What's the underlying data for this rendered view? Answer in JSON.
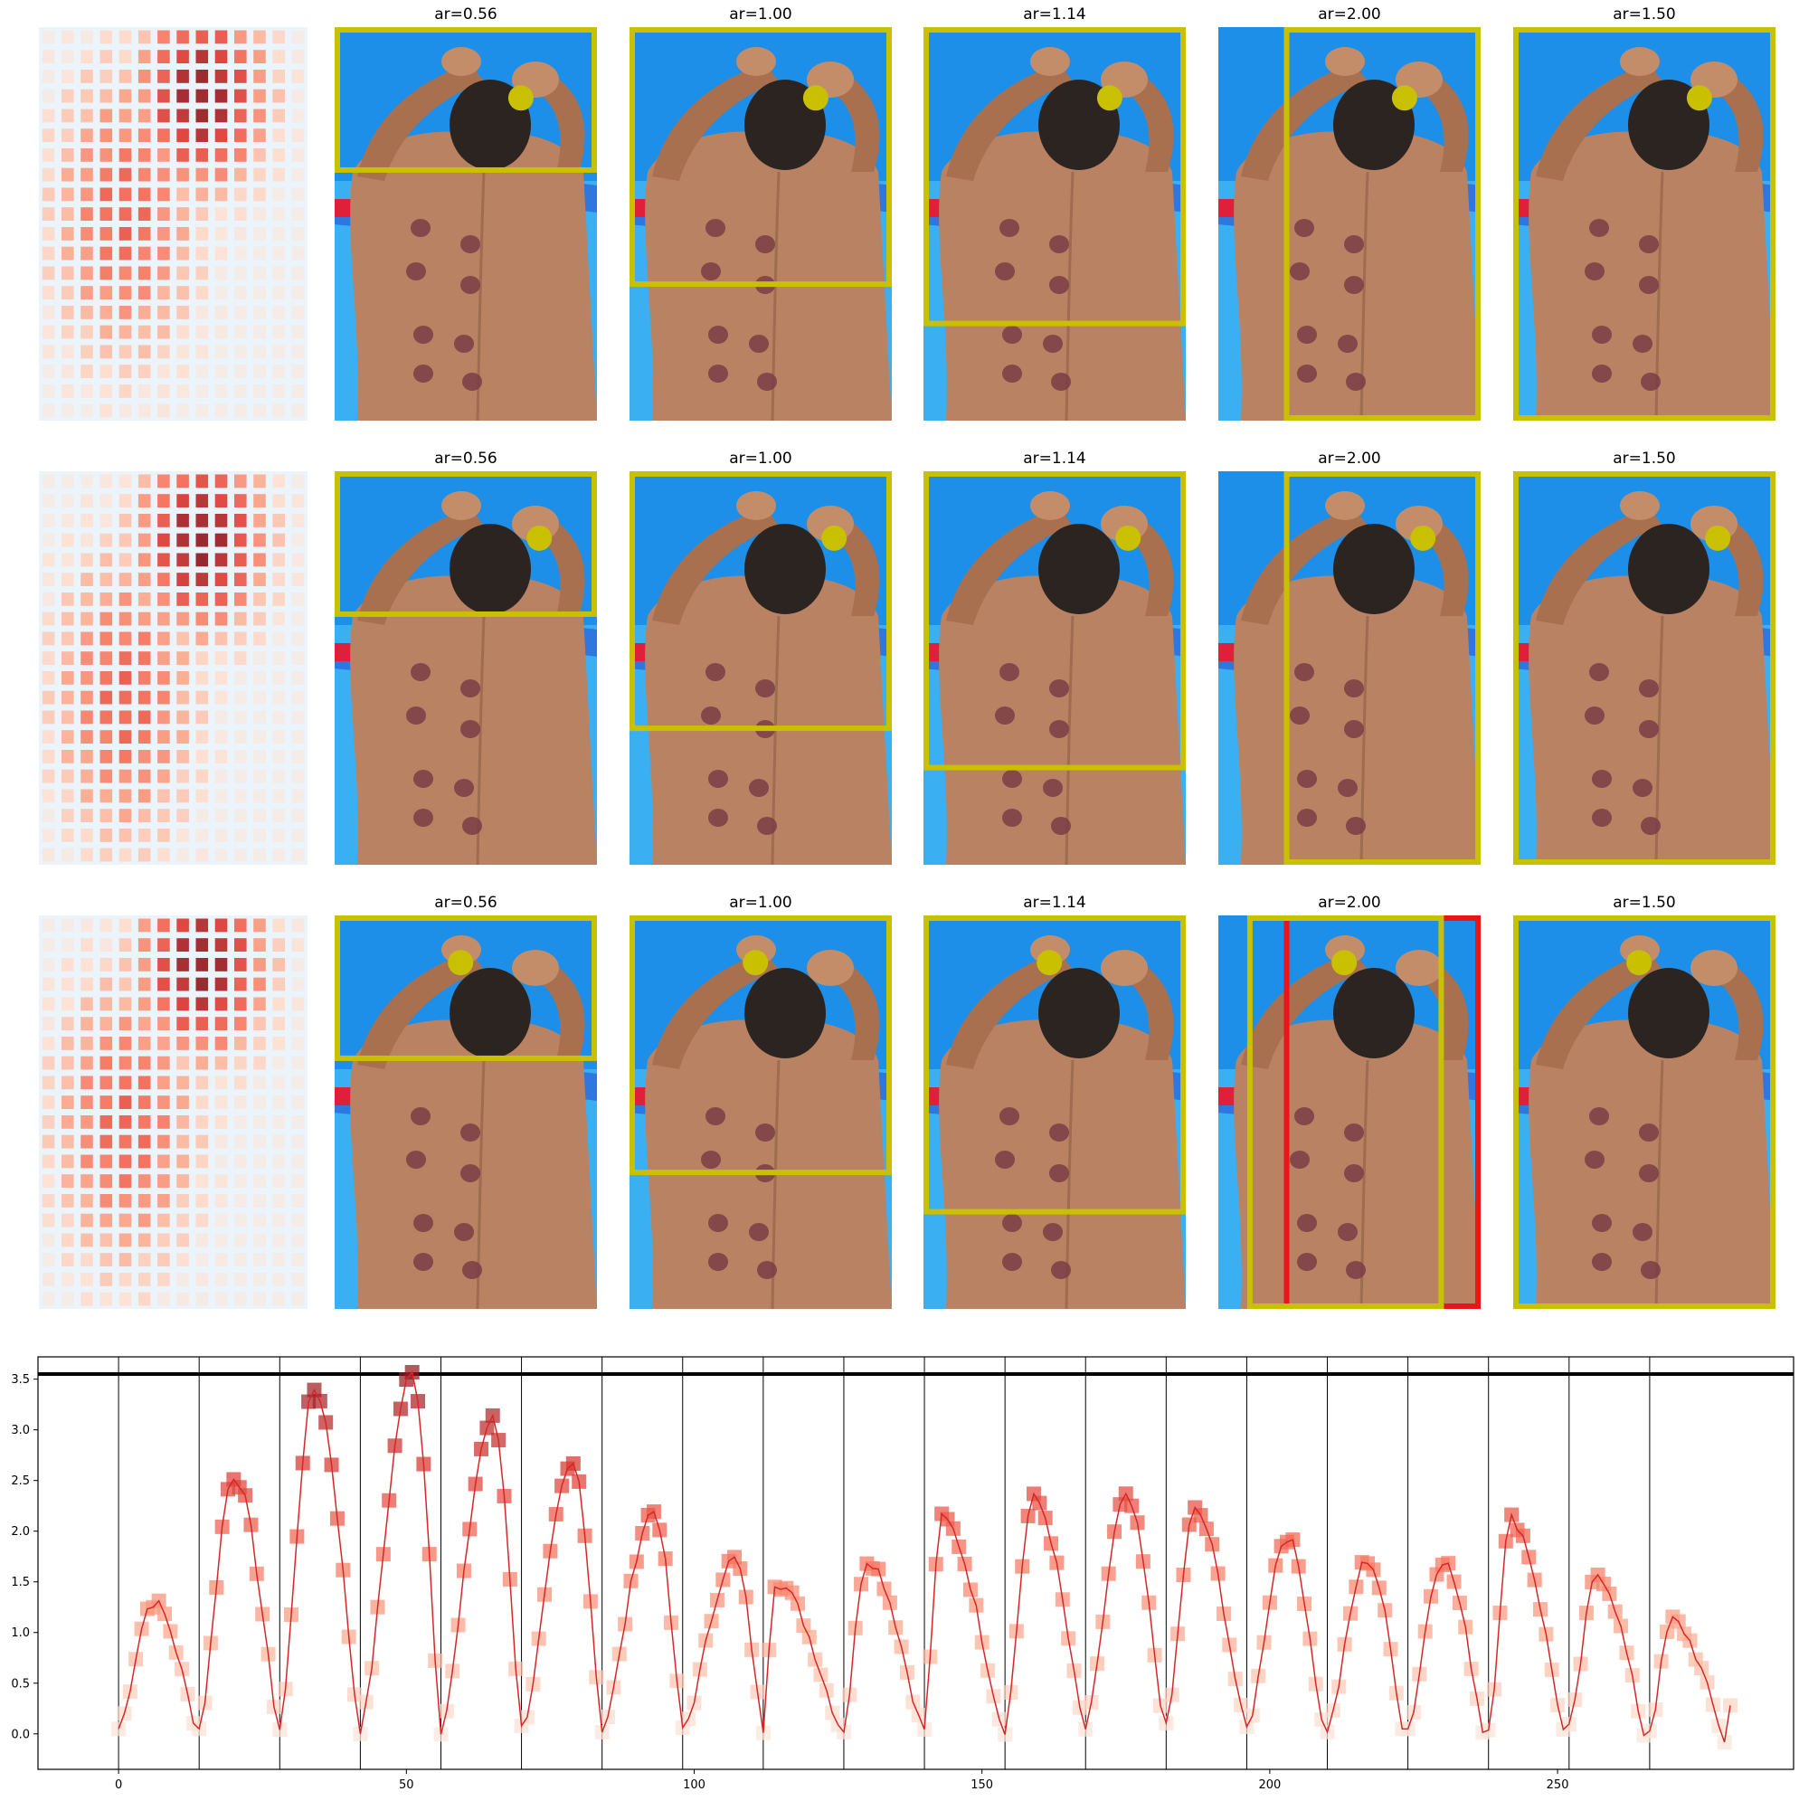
{
  "panel_titles": [
    "ar=0.56",
    "ar=1.00",
    "ar=1.14",
    "ar=2.00",
    "ar=1.50"
  ],
  "colors": {
    "box": "#c8c000",
    "box_alt": "#e8151b",
    "dot": "#c8c000",
    "line": "#d62728",
    "threshold": "#000000",
    "sky": "#1fa3ef",
    "skin": "#b98262"
  },
  "image_rows": [
    {
      "panels": [
        {
          "ar": 0.56,
          "box": {
            "x0": 0.0,
            "y0": 0.0,
            "x1": 1.0,
            "y1": 0.37
          },
          "dot": [
            0.71,
            0.18
          ]
        },
        {
          "ar": 1.0,
          "box": {
            "x0": 0.0,
            "y0": 0.0,
            "x1": 1.0,
            "y1": 0.66
          },
          "dot": [
            0.71,
            0.18
          ]
        },
        {
          "ar": 1.14,
          "box": {
            "x0": 0.0,
            "y0": 0.0,
            "x1": 1.0,
            "y1": 0.76
          },
          "dot": [
            0.71,
            0.18
          ]
        },
        {
          "ar": 2.0,
          "box": {
            "x0": 0.25,
            "y0": 0.0,
            "x1": 1.0,
            "y1": 1.0
          },
          "dot": [
            0.71,
            0.18
          ]
        },
        {
          "ar": 1.5,
          "box": {
            "x0": 0.0,
            "y0": 0.0,
            "x1": 1.0,
            "y1": 1.0
          },
          "dot": [
            0.71,
            0.18
          ]
        }
      ]
    },
    {
      "panels": [
        {
          "ar": 0.56,
          "box": {
            "x0": 0.0,
            "y0": 0.0,
            "x1": 1.0,
            "y1": 0.37
          },
          "dot": [
            0.78,
            0.17
          ]
        },
        {
          "ar": 1.0,
          "box": {
            "x0": 0.0,
            "y0": 0.0,
            "x1": 1.0,
            "y1": 0.66
          },
          "dot": [
            0.78,
            0.17
          ]
        },
        {
          "ar": 1.14,
          "box": {
            "x0": 0.0,
            "y0": 0.0,
            "x1": 1.0,
            "y1": 0.76
          },
          "dot": [
            0.78,
            0.17
          ]
        },
        {
          "ar": 2.0,
          "box": {
            "x0": 0.25,
            "y0": 0.0,
            "x1": 1.0,
            "y1": 1.0
          },
          "dot": [
            0.78,
            0.17
          ]
        },
        {
          "ar": 1.5,
          "box": {
            "x0": 0.0,
            "y0": 0.0,
            "x1": 1.0,
            "y1": 1.0
          },
          "dot": [
            0.78,
            0.17
          ]
        }
      ]
    },
    {
      "panels": [
        {
          "ar": 0.56,
          "box": {
            "x0": 0.0,
            "y0": 0.0,
            "x1": 1.0,
            "y1": 0.37
          },
          "dot": [
            0.48,
            0.12
          ]
        },
        {
          "ar": 1.0,
          "box": {
            "x0": 0.0,
            "y0": 0.0,
            "x1": 1.0,
            "y1": 0.66
          },
          "dot": [
            0.48,
            0.12
          ]
        },
        {
          "ar": 1.14,
          "box": {
            "x0": 0.0,
            "y0": 0.0,
            "x1": 1.0,
            "y1": 0.76
          },
          "dot": [
            0.48,
            0.12
          ]
        },
        {
          "ar": 2.0,
          "box": {
            "x0": 0.11,
            "y0": 0.0,
            "x1": 0.86,
            "y1": 1.0
          },
          "box_alt": {
            "x0": 0.25,
            "y0": 0.0,
            "x1": 1.0,
            "y1": 1.0
          },
          "dot": [
            0.48,
            0.12
          ]
        },
        {
          "ar": 1.5,
          "box": {
            "x0": 0.0,
            "y0": 0.0,
            "x1": 1.0,
            "y1": 1.0
          },
          "dot": [
            0.48,
            0.12
          ]
        }
      ]
    }
  ],
  "heatmaps": [
    {
      "rows": 20,
      "cols": 14,
      "peak": [
        3,
        8
      ],
      "secondary": [
        9,
        4
      ]
    },
    {
      "rows": 20,
      "cols": 14,
      "peak": [
        3,
        8
      ],
      "secondary": [
        11,
        4
      ]
    },
    {
      "rows": 20,
      "cols": 14,
      "peak": [
        2,
        8
      ],
      "secondary": [
        10,
        4
      ]
    }
  ],
  "chart_data": {
    "type": "line",
    "title": "",
    "xlabel": "",
    "ylabel": "",
    "xlim": [
      -14,
      291
    ],
    "ylim": [
      -0.35,
      3.72
    ],
    "xticks": [
      0,
      50,
      100,
      150,
      200,
      250
    ],
    "yticks": [
      0.0,
      0.5,
      1.0,
      1.5,
      2.0,
      2.5,
      3.0,
      3.5
    ],
    "xtick_labels": [
      "0",
      "50",
      "100",
      "150",
      "200",
      "250"
    ],
    "ytick_labels": [
      "0.0",
      "0.5",
      "1.0",
      "1.5",
      "2.0",
      "2.5",
      "3.0",
      "3.5"
    ],
    "threshold": 3.55,
    "vlines": [
      0,
      14,
      28,
      42,
      56,
      70,
      84,
      98,
      112,
      126,
      140,
      154,
      168,
      182,
      196,
      210,
      224,
      238,
      252,
      266
    ],
    "grid": false,
    "series": [
      {
        "segments": [
          {
            "x0": 0,
            "peak_x": 6,
            "peak": 1.3
          },
          {
            "x0": 14,
            "peak_x": 20,
            "peak": 2.55
          },
          {
            "x0": 28,
            "peak_x": 34,
            "peak": 3.4
          },
          {
            "x0": 42,
            "peak_x": 51,
            "peak": 3.55
          },
          {
            "x0": 56,
            "peak_x": 65,
            "peak": 3.1
          },
          {
            "x0": 70,
            "peak_x": 79,
            "peak": 2.65
          },
          {
            "x0": 84,
            "peak_x": 93,
            "peak": 2.2
          },
          {
            "x0": 98,
            "peak_x": 107,
            "peak": 1.72
          },
          {
            "x0": 112,
            "peak_x": 114,
            "peak": 1.5
          },
          {
            "x0": 126,
            "peak_x": 130,
            "peak": 1.72
          },
          {
            "x0": 140,
            "peak_x": 143,
            "peak": 2.12
          },
          {
            "x0": 154,
            "peak_x": 159,
            "peak": 2.32
          },
          {
            "x0": 168,
            "peak_x": 175,
            "peak": 2.32
          },
          {
            "x0": 182,
            "peak_x": 187,
            "peak": 2.2
          },
          {
            "x0": 196,
            "peak_x": 203,
            "peak": 1.95
          },
          {
            "x0": 210,
            "peak_x": 217,
            "peak": 1.72
          },
          {
            "x0": 224,
            "peak_x": 230,
            "peak": 1.72
          },
          {
            "x0": 238,
            "peak_x": 242,
            "peak": 2.12
          },
          {
            "x0": 252,
            "peak_x": 257,
            "peak": 1.58
          },
          {
            "x0": 266,
            "peak_x": 270,
            "peak": 1.12
          }
        ]
      }
    ]
  }
}
